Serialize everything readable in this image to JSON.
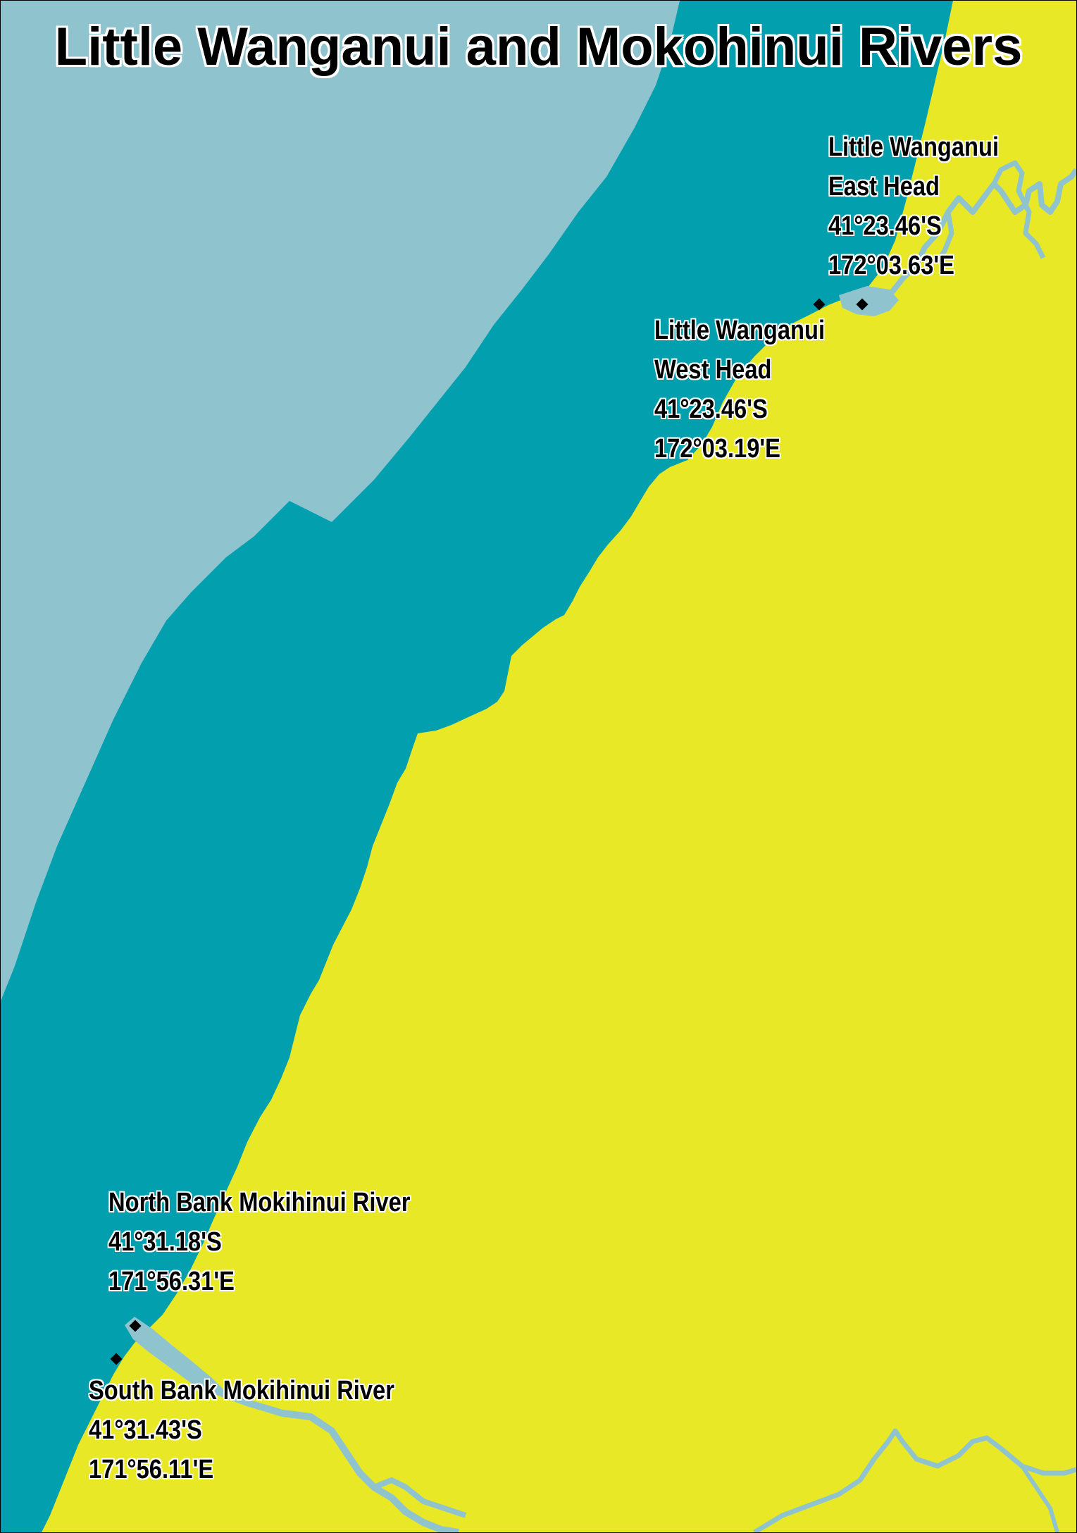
{
  "title": "Little Wanganui and Mokohinui Rivers",
  "colors": {
    "land": "#e8e826",
    "shallow_sea": "#02a0ae",
    "deep_sea": "#8fc4cf",
    "river": "#8fc4cf",
    "marker": "#000000"
  },
  "points": [
    {
      "id": "lw-east",
      "lines": [
        "Little Wanganui",
        "East Head",
        "41°23.46'S",
        "172°03.63'E"
      ]
    },
    {
      "id": "lw-west",
      "lines": [
        "Little Wanganui",
        "West Head",
        "41°23.46'S",
        "172°03.19'E"
      ]
    },
    {
      "id": "mk-north",
      "lines": [
        "North Bank Mokihinui River",
        "41°31.18'S",
        "171°56.31'E"
      ]
    },
    {
      "id": "mk-south",
      "lines": [
        "South Bank Mokihinui River",
        "41°31.43'S",
        "171°56.11'E"
      ]
    }
  ]
}
